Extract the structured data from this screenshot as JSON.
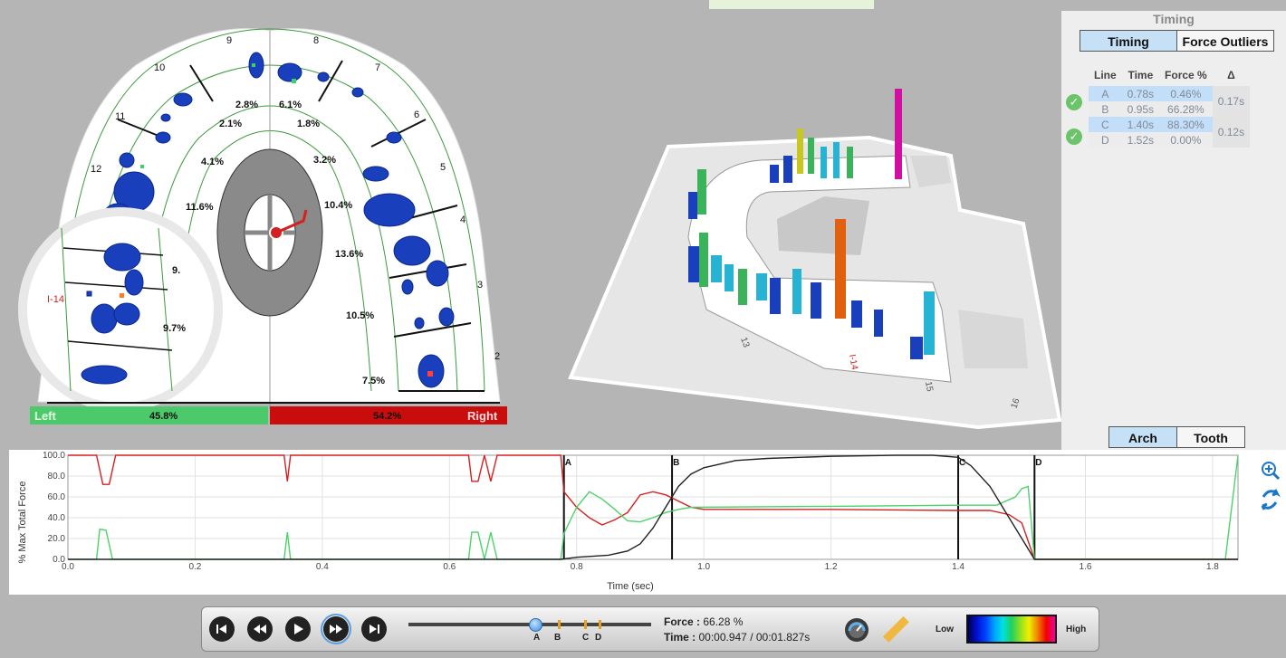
{
  "arch2d": {
    "tooth_numbers": [
      "9",
      "8",
      "7",
      "6",
      "5",
      "4",
      "3",
      "2",
      "10",
      "11",
      "12"
    ],
    "percentages": [
      "2.8%",
      "6.1%",
      "2.1%",
      "1.8%",
      "4.1%",
      "3.2%",
      "11.6%",
      "10.4%",
      "13.6%",
      "10.5%",
      "7.5%",
      "9.7%",
      "9."
    ],
    "inset_label": "I-14",
    "left_bar": {
      "label": "Left",
      "value": "45.8%",
      "color": "#4cc96a"
    },
    "right_bar": {
      "label": "Right",
      "value": "54.2%",
      "color": "#c90c0c"
    }
  },
  "arch3d": {
    "labels": [
      "13",
      "I-14",
      "15",
      "16"
    ]
  },
  "timing_panel": {
    "title": "Timing",
    "tabs": [
      {
        "label": "Timing",
        "active": true
      },
      {
        "label": "Force Outliers",
        "active": false
      }
    ],
    "columns": [
      "Line",
      "Time",
      "Force %",
      "Δ"
    ],
    "rows": [
      {
        "line": "A",
        "time": "0.78s",
        "force": "0.46%"
      },
      {
        "line": "B",
        "time": "0.95s",
        "force": "66.28%"
      },
      {
        "line": "C",
        "time": "1.40s",
        "force": "88.30%"
      },
      {
        "line": "D",
        "time": "1.52s",
        "force": "0.00%"
      }
    ],
    "deltas": [
      "0.17s",
      "0.12s"
    ],
    "view_tabs": [
      {
        "label": "Arch",
        "active": true
      },
      {
        "label": "Tooth",
        "active": false
      }
    ]
  },
  "graph": {
    "ylabel": "% Max Total Force",
    "xlabel": "Time (sec)",
    "markers": [
      "A",
      "B",
      "C",
      "D"
    ]
  },
  "chart_data": {
    "type": "line",
    "xlabel": "Time (sec)",
    "ylabel": "% Max Total Force",
    "xlim": [
      0.0,
      1.84
    ],
    "ylim": [
      0,
      100
    ],
    "x_ticks": [
      "0.0",
      "0.2",
      "0.4",
      "0.6",
      "0.8",
      "1.0",
      "1.2",
      "1.4",
      "1.6",
      "1.8"
    ],
    "y_ticks": [
      "0.0",
      "20.0",
      "40.0",
      "60.0",
      "80.0",
      "100.0"
    ],
    "markers": [
      {
        "label": "A",
        "x": 0.78
      },
      {
        "label": "B",
        "x": 0.95
      },
      {
        "label": "C",
        "x": 1.4
      },
      {
        "label": "D",
        "x": 1.52
      }
    ],
    "series": [
      {
        "color": "#d42020",
        "points": [
          [
            0,
            100
          ],
          [
            0.045,
            100
          ],
          [
            0.055,
            72
          ],
          [
            0.065,
            72
          ],
          [
            0.075,
            100
          ],
          [
            0.34,
            100
          ],
          [
            0.345,
            75
          ],
          [
            0.35,
            100
          ],
          [
            0.63,
            100
          ],
          [
            0.635,
            75
          ],
          [
            0.645,
            75
          ],
          [
            0.655,
            100
          ],
          [
            0.665,
            75
          ],
          [
            0.675,
            100
          ],
          [
            0.775,
            100
          ],
          [
            0.78,
            65
          ],
          [
            0.8,
            50
          ],
          [
            0.82,
            40
          ],
          [
            0.84,
            33
          ],
          [
            0.86,
            38
          ],
          [
            0.88,
            45
          ],
          [
            0.9,
            62
          ],
          [
            0.92,
            65
          ],
          [
            0.94,
            62
          ],
          [
            0.96,
            56
          ],
          [
            0.98,
            50
          ],
          [
            1.0,
            48
          ],
          [
            1.2,
            48
          ],
          [
            1.4,
            47
          ],
          [
            1.45,
            47
          ],
          [
            1.48,
            43
          ],
          [
            1.5,
            35
          ],
          [
            1.52,
            0
          ],
          [
            1.84,
            0
          ]
        ]
      },
      {
        "color": "#4cd36a",
        "points": [
          [
            0,
            0
          ],
          [
            0.045,
            0
          ],
          [
            0.05,
            29
          ],
          [
            0.06,
            28
          ],
          [
            0.07,
            0
          ],
          [
            0.34,
            0
          ],
          [
            0.345,
            26
          ],
          [
            0.35,
            0
          ],
          [
            0.63,
            0
          ],
          [
            0.635,
            26
          ],
          [
            0.645,
            26
          ],
          [
            0.655,
            0
          ],
          [
            0.665,
            26
          ],
          [
            0.675,
            0
          ],
          [
            0.775,
            0
          ],
          [
            0.78,
            25
          ],
          [
            0.8,
            50
          ],
          [
            0.82,
            65
          ],
          [
            0.84,
            58
          ],
          [
            0.86,
            48
          ],
          [
            0.88,
            37
          ],
          [
            0.9,
            36
          ],
          [
            0.92,
            40
          ],
          [
            0.94,
            45
          ],
          [
            0.96,
            48
          ],
          [
            0.98,
            50
          ],
          [
            1.2,
            51
          ],
          [
            1.4,
            52
          ],
          [
            1.46,
            52
          ],
          [
            1.49,
            60
          ],
          [
            1.5,
            68
          ],
          [
            1.51,
            70
          ],
          [
            1.52,
            0
          ],
          [
            1.82,
            0
          ],
          [
            1.84,
            100
          ]
        ]
      },
      {
        "color": "#222222",
        "points": [
          [
            0,
            0
          ],
          [
            0.775,
            0
          ],
          [
            0.8,
            2
          ],
          [
            0.85,
            4
          ],
          [
            0.88,
            8
          ],
          [
            0.9,
            15
          ],
          [
            0.92,
            30
          ],
          [
            0.94,
            50
          ],
          [
            0.96,
            70
          ],
          [
            0.98,
            82
          ],
          [
            1.0,
            88
          ],
          [
            1.05,
            95
          ],
          [
            1.1,
            97
          ],
          [
            1.2,
            99
          ],
          [
            1.3,
            100
          ],
          [
            1.36,
            100
          ],
          [
            1.4,
            98
          ],
          [
            1.42,
            90
          ],
          [
            1.45,
            70
          ],
          [
            1.48,
            40
          ],
          [
            1.5,
            20
          ],
          [
            1.52,
            0
          ],
          [
            1.84,
            0
          ]
        ]
      }
    ]
  },
  "playback": {
    "force_label": "Force :",
    "force_value": "66.28 %",
    "time_label": "Time :",
    "time_value": "00:00.947 / 00:01.827s",
    "slider_marks": [
      "A",
      "B",
      "C",
      "D"
    ],
    "slider_position": 0.518,
    "legend_low": "Low",
    "legend_high": "High"
  }
}
